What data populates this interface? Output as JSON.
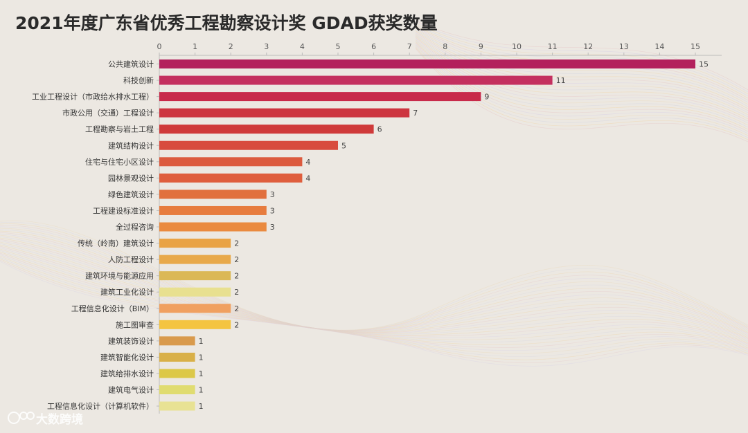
{
  "chart_data": {
    "type": "bar",
    "orientation": "horizontal",
    "title": "2021年度广东省优秀工程勘察设计奖 GDAD获奖数量",
    "categories": [
      "公共建筑设计",
      "科技创新",
      "工业工程设计（市政给水排水工程）",
      "市政公用（交通）工程设计",
      "工程勘察与岩土工程",
      "建筑结构设计",
      "住宅与住宅小区设计",
      "园林景观设计",
      "绿色建筑设计",
      "工程建设标准设计",
      "全过程咨询",
      "传统（岭南）建筑设计",
      "人防工程设计",
      "建筑环境与能源应用",
      "建筑工业化设计",
      "工程信息化设计（BIM）",
      "施工图审查",
      "建筑装饰设计",
      "建筑智能化设计",
      "建筑给排水设计",
      "建筑电气设计",
      "工程信息化设计（计算机软件）"
    ],
    "values": [
      15,
      11,
      9,
      7,
      6,
      5,
      4,
      4,
      3,
      3,
      3,
      2,
      2,
      2,
      2,
      2,
      2,
      1,
      1,
      1,
      1,
      1
    ],
    "colors": [
      "#b3205c",
      "#c4305f",
      "#c82a4a",
      "#cd3540",
      "#cf3a3a",
      "#d84c3e",
      "#dc5a3e",
      "#df5e3d",
      "#e1703e",
      "#e77c3e",
      "#ea8a3f",
      "#e9a345",
      "#e8a94a",
      "#dbb856",
      "#e8e090",
      "#f0a060",
      "#f4c440",
      "#d99a4c",
      "#d9b048",
      "#dcc848",
      "#e0dc70",
      "#e8e294"
    ],
    "xlim": [
      0,
      15
    ],
    "xticks": [
      0,
      1,
      2,
      3,
      4,
      5,
      6,
      7,
      8,
      9,
      10,
      11,
      12,
      13,
      14,
      15
    ],
    "xlabel": "",
    "ylabel": "",
    "grid": false,
    "legend": "none"
  },
  "watermark": {
    "text": "大数跨境",
    "icon": "logo-icon"
  }
}
